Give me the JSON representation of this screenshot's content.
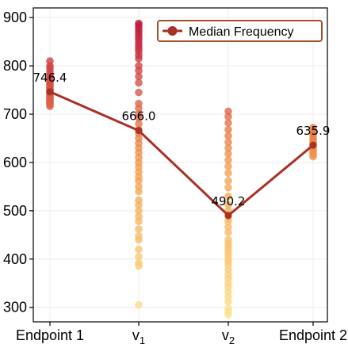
{
  "chart_data": {
    "type": "scatter+line",
    "title": "",
    "xlabel": "",
    "ylabel": "",
    "categories": [
      "Endpoint 1",
      "v1",
      "v2",
      "Endpoint 2"
    ],
    "x_tick_labels": [
      {
        "base": "Endpoint 1",
        "sub": ""
      },
      {
        "base": "v",
        "sub": "1"
      },
      {
        "base": "v",
        "sub": "2"
      },
      {
        "base": "Endpoint 2",
        "sub": ""
      }
    ],
    "ylim": [
      270,
      920
    ],
    "yticks": [
      300,
      400,
      500,
      600,
      700,
      800,
      900
    ],
    "grid": true,
    "legend": {
      "position": "top-right",
      "entries": [
        "Median Frequency"
      ]
    },
    "colors": {
      "median_line": "#a93226",
      "legend_border": "#a0522d",
      "axis": "#000000",
      "grid": "#ececec",
      "point_low": "#fde08a",
      "point_mid": "#f39c4b",
      "point_high": "#c0143c"
    },
    "series": [
      {
        "name": "Median Frequency",
        "values": [
          746.4,
          666.0,
          490.2,
          635.9
        ],
        "labels": [
          "746.4",
          "666.0",
          "490.2",
          "635.9"
        ]
      }
    ],
    "scatter": [
      {
        "category": "Endpoint 1",
        "values": [
          810,
          800,
          795,
          788,
          782,
          778,
          772,
          768,
          765,
          762,
          758,
          755,
          752,
          750,
          748,
          745,
          742,
          740,
          738,
          735,
          732,
          730,
          728,
          725,
          722,
          720,
          716
        ]
      },
      {
        "category": "v1",
        "values": [
          888,
          884,
          878,
          872,
          866,
          860,
          855,
          848,
          842,
          836,
          830,
          822,
          815,
          800,
          790,
          778,
          765,
          745,
          722,
          712,
          700,
          692,
          680,
          668,
          660,
          650,
          640,
          630,
          620,
          610,
          600,
          590,
          580,
          570,
          562,
          550,
          540,
          522,
          512,
          500,
          488,
          478,
          462,
          448,
          440,
          420,
          405,
          392,
          386,
          305
        ]
      },
      {
        "category": "v2",
        "values": [
          706,
          695,
          682,
          668,
          655,
          642,
          630,
          618,
          605,
          592,
          578,
          562,
          548,
          530,
          512,
          500,
          492,
          486,
          478,
          466,
          455,
          440,
          432,
          425,
          418,
          410,
          402,
          395,
          388,
          378,
          368,
          360,
          350,
          342,
          332,
          322,
          312,
          298,
          290,
          285
        ]
      },
      {
        "category": "Endpoint 2",
        "values": [
          672,
          666,
          660,
          655,
          650,
          646,
          642,
          638,
          635,
          632,
          628,
          624,
          620,
          616,
          612
        ]
      }
    ]
  }
}
